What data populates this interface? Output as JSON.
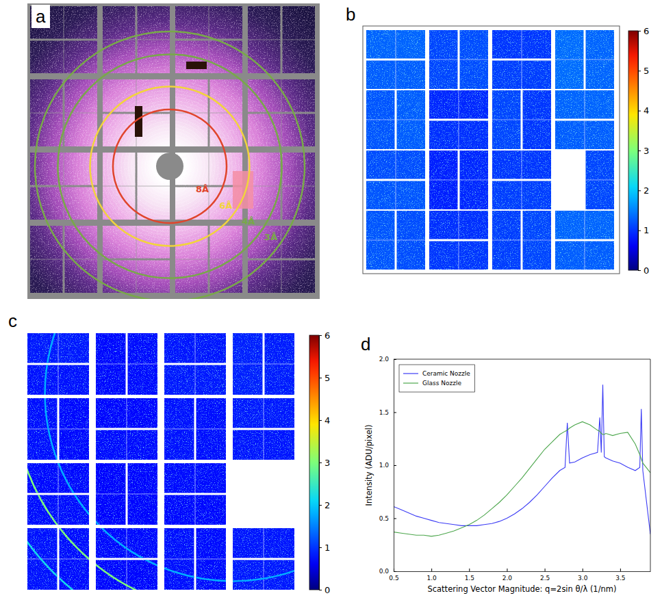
{
  "chart_data": [
    {
      "type": "image",
      "panel_label": "a",
      "rings": [
        {
          "value": 8,
          "label": "8Å",
          "color": "#e0452c"
        },
        {
          "value": 6,
          "label": "6Å",
          "color": "#f2d43c"
        },
        {
          "value": 4,
          "label": "4Å",
          "color": "#78a948"
        },
        {
          "value": 3,
          "label": "3Å",
          "color": "#78a948"
        }
      ]
    },
    {
      "type": "heatmap",
      "panel_label": "b",
      "cells": [
        1.3,
        1.25,
        1.1,
        1.15,
        1.0,
        1.05,
        1.35,
        1.3,
        1.2,
        1.25,
        0.9,
        0.95,
        1.1,
        1.0,
        1.3,
        1.25,
        1.15,
        1.2,
        0.85,
        0.9,
        1.0,
        1.05,
        1.1,
        1.2,
        1.15,
        0.95,
        1.0,
        1.05,
        1.1,
        1.3,
        1.25
      ],
      "color_range": [
        0,
        6
      ],
      "color_ticks": [
        0,
        1,
        2,
        3,
        4,
        5,
        6
      ]
    },
    {
      "type": "heatmap",
      "panel_label": "c",
      "cells": [
        0.8,
        0.75,
        0.7,
        0.72,
        0.78,
        0.8,
        0.85,
        0.82,
        0.74,
        0.7,
        0.68,
        0.72,
        0.76,
        0.74,
        0.8,
        0.78,
        0.7,
        0.72,
        0.66,
        0.68,
        0.72,
        0.7,
        0.75,
        0.72,
        0.7,
        0.68,
        0.74,
        0.72,
        0.78,
        0.8
      ],
      "color_range": [
        0,
        6
      ],
      "color_ticks": [
        0,
        1,
        2,
        3,
        4,
        5,
        6
      ],
      "rings": [
        {
          "q": 2.8,
          "intensity": 1.8
        },
        {
          "q": 3.27,
          "intensity": 3
        },
        {
          "q": 3.78,
          "intensity": 2.2
        }
      ]
    },
    {
      "type": "line",
      "panel_label": "d",
      "x_label": "Scattering Vector Magnitude: q=2sin θ/λ (1/nm)",
      "y_label": "Intensity (ADU/pixel)",
      "x": [
        0.5,
        0.6,
        0.7,
        0.8,
        0.9,
        1.0,
        1.1,
        1.2,
        1.3,
        1.4,
        1.5,
        1.6,
        1.7,
        1.8,
        1.9,
        2.0,
        2.1,
        2.2,
        2.3,
        2.4,
        2.5,
        2.6,
        2.7,
        2.77,
        2.8,
        2.83,
        2.9,
        3.0,
        3.1,
        3.2,
        3.23,
        3.25,
        3.27,
        3.29,
        3.31,
        3.4,
        3.5,
        3.6,
        3.7,
        3.76,
        3.78,
        3.8,
        3.9
      ],
      "series": [
        {
          "name": "Ceramic Nozzle",
          "color": "#3b3bf5",
          "values": [
            0.61,
            0.58,
            0.55,
            0.52,
            0.5,
            0.48,
            0.46,
            0.45,
            0.44,
            0.43,
            0.43,
            0.43,
            0.44,
            0.45,
            0.47,
            0.5,
            0.54,
            0.59,
            0.65,
            0.72,
            0.8,
            0.88,
            0.95,
            0.98,
            1.4,
            1.02,
            1.03,
            1.07,
            1.1,
            1.12,
            1.45,
            1.12,
            1.76,
            1.08,
            1.07,
            1.04,
            1.02,
            0.98,
            0.95,
            0.98,
            1.53,
            0.95,
            0.35
          ]
        },
        {
          "name": "Glass Nozzle",
          "color": "#4ca64c",
          "values": [
            0.37,
            0.36,
            0.35,
            0.34,
            0.34,
            0.33,
            0.34,
            0.36,
            0.38,
            0.41,
            0.44,
            0.48,
            0.53,
            0.59,
            0.65,
            0.72,
            0.8,
            0.88,
            0.97,
            1.06,
            1.15,
            1.22,
            1.29,
            1.32,
            1.33,
            1.35,
            1.38,
            1.41,
            1.38,
            1.33,
            1.32,
            1.3,
            1.29,
            1.29,
            1.3,
            1.28,
            1.3,
            1.31,
            1.2,
            1.1,
            1.06,
            1.02,
            0.93
          ]
        }
      ],
      "xlim": [
        0.5,
        3.9
      ],
      "ylim": [
        0,
        2
      ],
      "xticks": [
        0.5,
        {
          "value": 1,
          "label": "1.0"
        },
        1.5,
        {
          "value": 2,
          "label": "2.0"
        },
        2.5,
        {
          "value": 3,
          "label": "3.0"
        },
        3.5
      ],
      "yticks": [
        {
          "value": 0,
          "label": "0.0"
        },
        0.5,
        {
          "value": 1,
          "label": "1.0"
        },
        1.5,
        {
          "value": 2,
          "label": "2.0"
        }
      ],
      "legend": "upper left"
    }
  ]
}
